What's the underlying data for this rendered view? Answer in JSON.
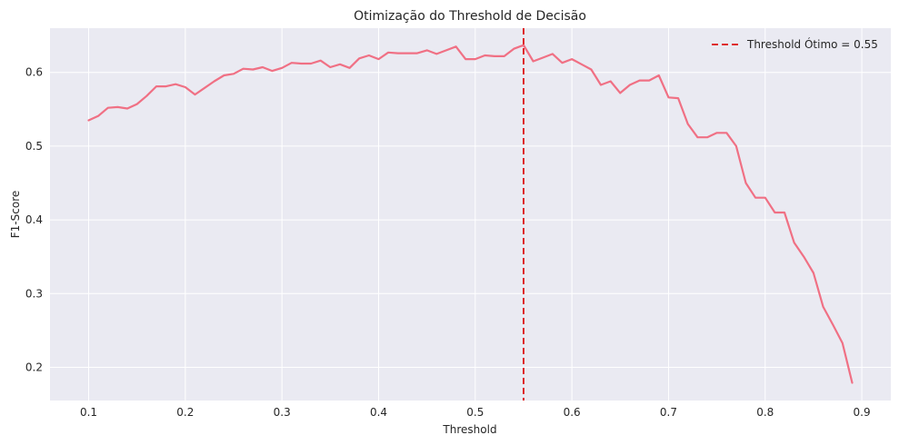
{
  "chart_data": {
    "type": "line",
    "title": "Otimização do Threshold de Decisão",
    "xlabel": "Threshold",
    "ylabel": "F1-Score",
    "xlim": [
      0.06,
      0.93
    ],
    "ylim": [
      0.155,
      0.66
    ],
    "xticks": [
      0.1,
      0.2,
      0.3,
      0.4,
      0.5,
      0.6,
      0.7,
      0.8,
      0.9
    ],
    "yticks": [
      0.2,
      0.3,
      0.4,
      0.5,
      0.6
    ],
    "xtick_labels": [
      "0.1",
      "0.2",
      "0.3",
      "0.4",
      "0.5",
      "0.6",
      "0.7",
      "0.8",
      "0.9"
    ],
    "ytick_labels": [
      "0.2",
      "0.3",
      "0.4",
      "0.5",
      "0.6"
    ],
    "grid": true,
    "legend_position": "top-right",
    "line_color": "#f07084",
    "vline_color": "#dd1111",
    "background_color": "#eaeaf2",
    "series": [
      {
        "values": [
          0.535,
          0.541,
          0.552,
          0.553,
          0.551,
          0.557,
          0.568,
          0.581,
          0.581,
          0.584,
          0.58,
          0.57,
          0.579,
          0.588,
          0.596,
          0.598,
          0.605,
          0.604,
          0.607,
          0.602,
          0.606,
          0.613,
          0.612,
          0.612,
          0.616,
          0.607,
          0.611,
          0.606,
          0.619,
          0.623,
          0.618,
          0.627,
          0.626,
          0.626,
          0.626,
          0.63,
          0.625,
          0.63,
          0.635,
          0.618,
          0.618,
          0.623,
          0.622,
          0.622,
          0.632,
          0.637,
          0.615,
          0.62,
          0.625,
          0.613,
          0.618,
          0.611,
          0.604,
          0.583,
          0.588,
          0.572,
          0.583,
          0.589,
          0.589,
          0.596,
          0.566,
          0.565,
          0.53,
          0.512,
          0.512,
          0.518,
          0.518,
          0.5,
          0.45,
          0.43,
          0.43,
          0.41,
          0.41,
          0.369,
          0.35,
          0.328,
          0.282,
          0.258,
          0.233,
          0.179
        ]
      }
    ],
    "x_start": 0.1,
    "x_step": 0.01,
    "vline": {
      "x": 0.55,
      "label": "Threshold Ótimo = 0.55"
    }
  }
}
